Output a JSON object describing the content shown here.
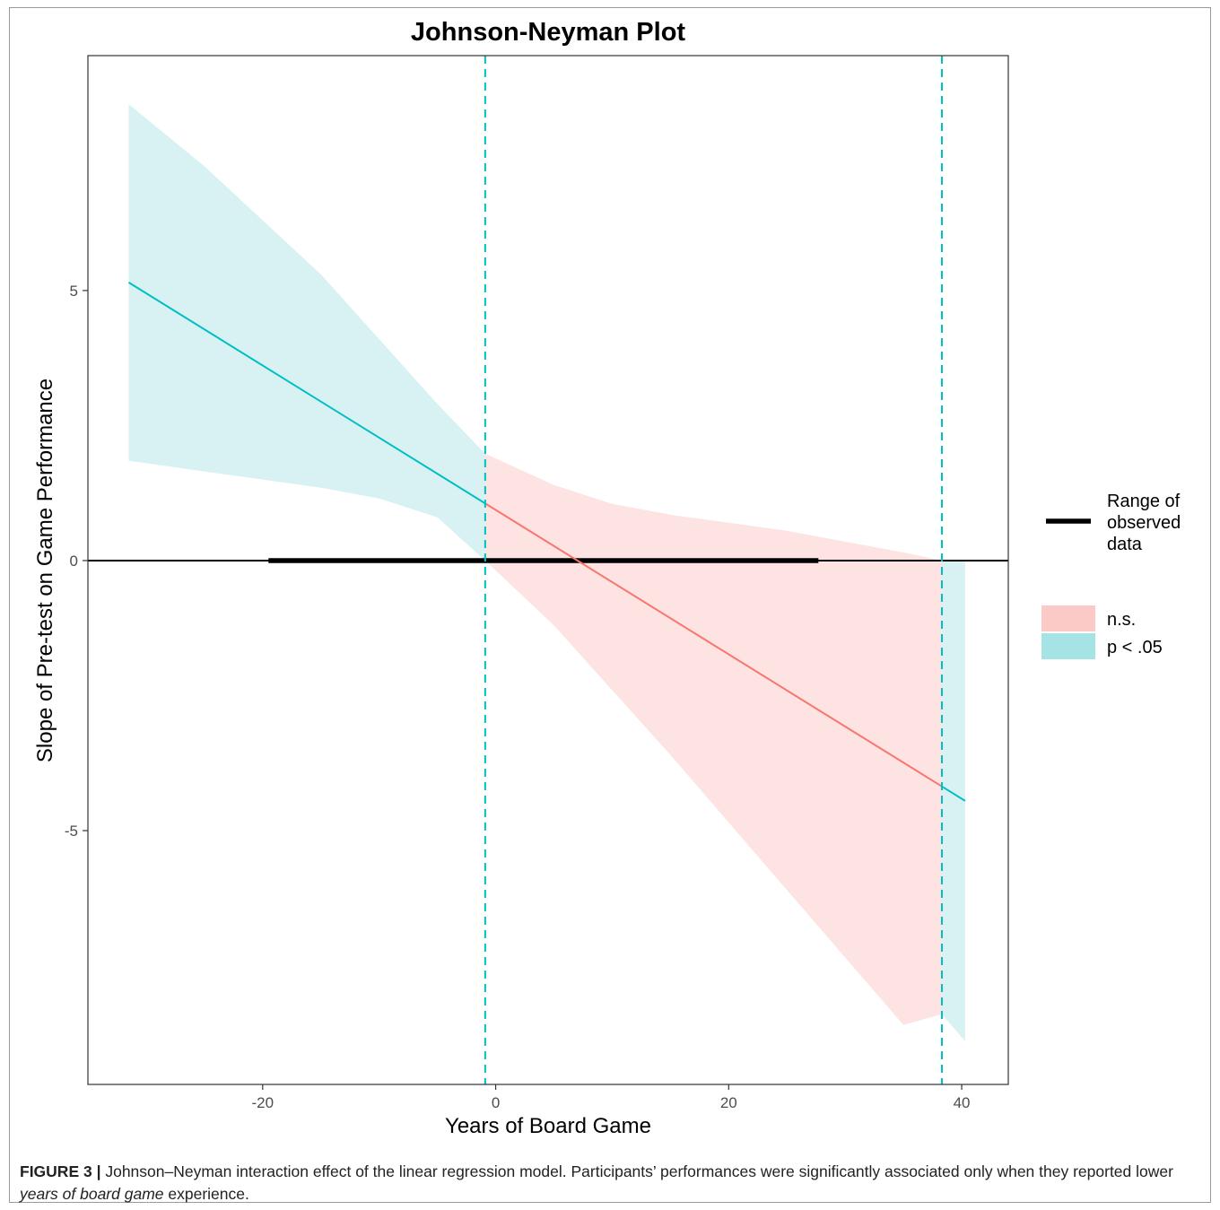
{
  "chart_data": {
    "type": "line",
    "title": "Johnson-Neyman Plot",
    "xlabel": "Years of Board Game",
    "ylabel": "Slope of Pre-test on Game Performance",
    "xlim": [
      -35,
      44
    ],
    "ylim": [
      -9.7,
      9.35
    ],
    "x_ticks": [
      -20,
      0,
      20,
      40
    ],
    "x_tick_labels": [
      "-20",
      "0",
      "20",
      "40"
    ],
    "y_ticks": [
      5,
      0,
      -5
    ],
    "y_tick_labels": [
      "5",
      "0",
      "-5"
    ],
    "grid": false,
    "legend_position": "right",
    "x_range_plotted": [
      -31.5,
      40.3
    ],
    "slope_line": {
      "x": [
        -31.5,
        40.3
      ],
      "y": [
        5.15,
        -4.45
      ]
    },
    "confidence_band": {
      "x": [
        -31.5,
        -25,
        -20,
        -15,
        -10,
        -5,
        -0.9,
        5,
        10,
        15,
        20,
        25,
        30,
        35,
        38.3,
        40.3
      ],
      "lower": [
        1.85,
        1.65,
        1.5,
        1.35,
        1.15,
        0.8,
        0.0,
        -1.2,
        -2.4,
        -3.6,
        -4.85,
        -6.1,
        -7.35,
        -8.6,
        -8.4,
        -8.9
      ],
      "upper": [
        8.45,
        7.3,
        6.3,
        5.3,
        4.1,
        2.9,
        1.98,
        1.4,
        1.05,
        0.85,
        0.7,
        0.55,
        0.35,
        0.15,
        0.0,
        0.0
      ]
    },
    "jn_bounds": [
      -0.9,
      38.3
    ],
    "zero_line": 0,
    "observed_range": [
      -19.5,
      27.7
    ],
    "series": [
      {
        "name": "n.s.",
        "color": "#F8766D",
        "fill": "#FBC9C6"
      },
      {
        "name": "p < .05",
        "color": "#00BFC4",
        "fill": "#A6E3E5"
      }
    ],
    "legend": {
      "range_label": [
        "Range of",
        "observed",
        "data"
      ],
      "items": [
        "n.s.",
        "p < .05"
      ]
    },
    "colors": {
      "significant": "#00BFC4",
      "nonsignificant": "#F8766D",
      "significant_fill": "#D8F1F2",
      "nonsignificant_fill": "#FDE4E3",
      "zero_line": "#000000",
      "observed_bar": "#000000"
    }
  },
  "caption": {
    "label": "FIGURE 3 |",
    "text1": " Johnson–Neyman interaction effect of the linear regression model. Participants’ performances were significantly associated only when they reported lower ",
    "italic": "years of board game",
    "text2": " experience."
  }
}
